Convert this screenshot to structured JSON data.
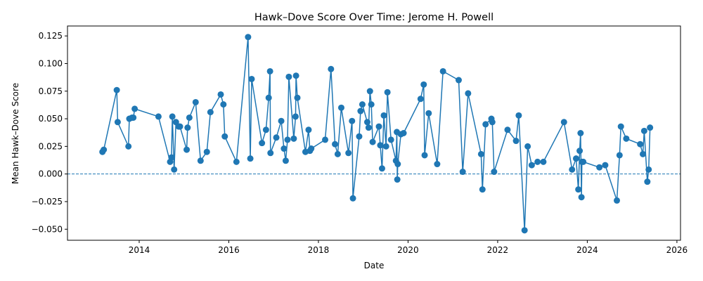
{
  "chart_data": {
    "type": "line",
    "title": "Hawk–Dove Score Over Time: Jerome H. Powell",
    "xlabel": "Date",
    "ylabel": "Mean Hawk–Dove Score",
    "xlim": [
      2012.4,
      2026.08
    ],
    "ylim": [
      -0.06,
      0.134
    ],
    "xticks": [
      2014,
      2016,
      2018,
      2020,
      2022,
      2024,
      2026
    ],
    "xtick_labels": [
      "2014",
      "2016",
      "2018",
      "2020",
      "2022",
      "2024",
      "2026"
    ],
    "yticks": [
      -0.05,
      -0.025,
      0.0,
      0.025,
      0.05,
      0.075,
      0.1,
      0.125
    ],
    "ytick_labels": [
      "−0.050",
      "−0.025",
      "0.000",
      "0.025",
      "0.050",
      "0.075",
      "0.100",
      "0.125"
    ],
    "reference_line": 0.0,
    "grid": false,
    "line_color": "#1f77b4",
    "series": [
      {
        "x": [
          2013.18,
          2013.21,
          2013.5,
          2013.52,
          2013.76,
          2013.78,
          2013.84,
          2013.87,
          2013.9,
          2014.43,
          2014.69,
          2014.72,
          2014.74,
          2014.78,
          2014.82,
          2014.88,
          2014.91,
          2015.06,
          2015.08,
          2015.12,
          2015.26,
          2015.37,
          2015.51,
          2015.59,
          2015.82,
          2015.88,
          2015.91,
          2016.17,
          2016.43,
          2016.48,
          2016.51,
          2016.74,
          2016.83,
          2016.89,
          2016.92,
          2016.93,
          2017.06,
          2017.17,
          2017.23,
          2017.27,
          2017.31,
          2017.34,
          2017.45,
          2017.49,
          2017.5,
          2017.53,
          2017.71,
          2017.78,
          2017.81,
          2017.84,
          2018.15,
          2018.28,
          2018.37,
          2018.43,
          2018.51,
          2018.67,
          2018.75,
          2018.77,
          2018.91,
          2018.94,
          2018.98,
          2019.09,
          2019.12,
          2019.15,
          2019.18,
          2019.21,
          2019.35,
          2019.38,
          2019.42,
          2019.46,
          2019.51,
          2019.54,
          2019.62,
          2019.73,
          2019.75,
          2019.76,
          2019.77,
          2019.84,
          2019.9,
          2020.28,
          2020.35,
          2020.37,
          2020.46,
          2020.65,
          2020.78,
          2021.13,
          2021.22,
          2021.34,
          2021.63,
          2021.66,
          2021.73,
          2021.86,
          2021.88,
          2021.92,
          2022.22,
          2022.41,
          2022.47,
          2022.6,
          2022.67,
          2022.76,
          2022.89,
          2023.02,
          2023.48,
          2023.66,
          2023.75,
          2023.8,
          2023.83,
          2023.85,
          2023.87,
          2023.88,
          2023.91,
          2024.27,
          2024.4,
          2024.66,
          2024.72,
          2024.75,
          2024.87,
          2025.18,
          2025.24,
          2025.27,
          2025.34,
          2025.37,
          2025.4
        ],
        "y": [
          0.02,
          0.022,
          0.076,
          0.047,
          0.025,
          0.05,
          0.051,
          0.051,
          0.059,
          0.052,
          0.011,
          0.015,
          0.052,
          0.004,
          0.047,
          0.043,
          0.043,
          0.022,
          0.042,
          0.051,
          0.065,
          0.012,
          0.02,
          0.056,
          0.072,
          0.063,
          0.034,
          0.011,
          0.124,
          0.014,
          0.086,
          0.028,
          0.04,
          0.069,
          0.093,
          0.019,
          0.033,
          0.048,
          0.023,
          0.012,
          0.031,
          0.088,
          0.032,
          0.052,
          0.089,
          0.069,
          0.02,
          0.04,
          0.021,
          0.023,
          0.031,
          0.095,
          0.027,
          0.018,
          0.06,
          0.019,
          0.048,
          -0.022,
          0.034,
          0.057,
          0.063,
          0.047,
          0.042,
          0.075,
          0.063,
          0.029,
          0.043,
          0.026,
          0.005,
          0.053,
          0.025,
          0.074,
          0.031,
          0.012,
          0.038,
          -0.005,
          0.009,
          0.036,
          0.037,
          0.068,
          0.081,
          0.017,
          0.055,
          0.009,
          0.093,
          0.085,
          0.002,
          0.073,
          0.018,
          -0.014,
          0.045,
          0.05,
          0.047,
          0.002,
          0.04,
          0.03,
          0.053,
          -0.051,
          0.025,
          0.008,
          0.011,
          0.011,
          0.047,
          0.004,
          0.014,
          -0.014,
          0.021,
          0.037,
          -0.021,
          0.011,
          0.011,
          0.006,
          0.008,
          -0.024,
          0.017,
          0.043,
          0.032,
          0.027,
          0.018,
          0.039,
          -0.007,
          0.004,
          0.042
        ]
      }
    ]
  }
}
